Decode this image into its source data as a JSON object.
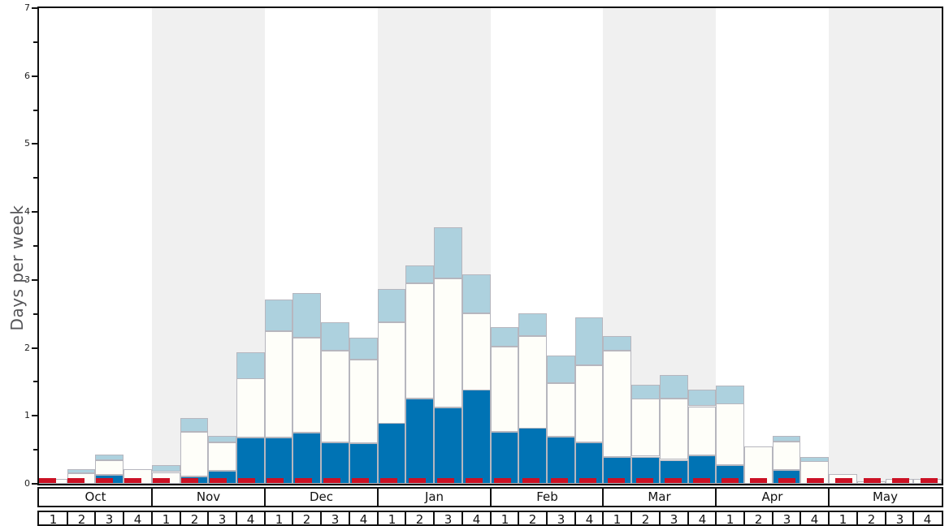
{
  "y_axis": {
    "label": "Days per week",
    "min": 0,
    "max": 7,
    "tick_labels": [
      "0",
      "1",
      "2",
      "3",
      "4",
      "5",
      "6",
      "7"
    ]
  },
  "x_axis": {
    "months": [
      {
        "name": "Oct",
        "weeks": [
          "1",
          "2",
          "3",
          "4"
        ],
        "shaded": false
      },
      {
        "name": "Nov",
        "weeks": [
          "1",
          "2",
          "3",
          "4"
        ],
        "shaded": true
      },
      {
        "name": "Dec",
        "weeks": [
          "1",
          "2",
          "3",
          "4"
        ],
        "shaded": false
      },
      {
        "name": "Jan",
        "weeks": [
          "1",
          "2",
          "3",
          "4"
        ],
        "shaded": true
      },
      {
        "name": "Feb",
        "weeks": [
          "1",
          "2",
          "3",
          "4"
        ],
        "shaded": false
      },
      {
        "name": "Mar",
        "weeks": [
          "1",
          "2",
          "3",
          "4"
        ],
        "shaded": true
      },
      {
        "name": "Apr",
        "weeks": [
          "1",
          "2",
          "3",
          "4"
        ],
        "shaded": false
      },
      {
        "name": "May",
        "weeks": [
          "1",
          "2",
          "3",
          "4"
        ],
        "shaded": true
      }
    ]
  },
  "colors": {
    "dark_blue": "#0073B4",
    "white_bar": "#FEFEF9",
    "light_blue": "#ADD1DE",
    "bar_border": "#B6B6BE",
    "shaded_band": "#F0F0F0",
    "reference_red": "#CB1124",
    "axis_black": "#111111"
  },
  "chart_data": {
    "type": "bar",
    "stacked": true,
    "title": "",
    "xlabel": "",
    "ylabel": "Days per week",
    "ylim": [
      0,
      7
    ],
    "grid": false,
    "legend": "none",
    "categories": [
      "Oct 1",
      "Oct 2",
      "Oct 3",
      "Oct 4",
      "Nov 1",
      "Nov 2",
      "Nov 3",
      "Nov 4",
      "Dec 1",
      "Dec 2",
      "Dec 3",
      "Dec 4",
      "Jan 1",
      "Jan 2",
      "Jan 3",
      "Jan 4",
      "Feb 1",
      "Feb 2",
      "Feb 3",
      "Feb 4",
      "Mar 1",
      "Mar 2",
      "Mar 3",
      "Mar 4",
      "Apr 1",
      "Apr 2",
      "Apr 3",
      "Apr 4",
      "May 1",
      "May 2",
      "May 3",
      "May 4"
    ],
    "series": [
      {
        "name": "dark_blue_days",
        "color": "#0073B4",
        "values": [
          0,
          0,
          0.13,
          0,
          0,
          0.11,
          0.19,
          0.68,
          0.68,
          0.75,
          0.61,
          0.6,
          0.89,
          1.25,
          1.12,
          1.38,
          0.76,
          0.82,
          0.69,
          0.61,
          0.4,
          0.4,
          0.35,
          0.42,
          0.27,
          0,
          0.2,
          0,
          0,
          0,
          0,
          0
        ]
      },
      {
        "name": "white_days",
        "color": "#FEFEF9",
        "values": [
          0.07,
          0.15,
          0.22,
          0.21,
          0.17,
          0.66,
          0.42,
          0.87,
          1.56,
          1.4,
          1.35,
          1.23,
          1.49,
          1.7,
          1.9,
          1.13,
          1.26,
          1.36,
          0.79,
          1.13,
          1.56,
          0.85,
          0.9,
          0.72,
          0.91,
          0.55,
          0.42,
          0.33,
          0.14,
          0.03,
          0.07,
          0.07
        ]
      },
      {
        "name": "light_blue_days",
        "color": "#ADD1DE",
        "values": [
          0,
          0.06,
          0.08,
          0,
          0.1,
          0.2,
          0.09,
          0.39,
          0.47,
          0.66,
          0.42,
          0.32,
          0.49,
          0.26,
          0.75,
          0.57,
          0.29,
          0.33,
          0.41,
          0.71,
          0.21,
          0.21,
          0.35,
          0.24,
          0.27,
          0,
          0.08,
          0.07,
          0,
          0,
          0,
          0
        ]
      }
    ],
    "totals": [
      0.07,
      0.21,
      0.43,
      0.21,
      0.27,
      0.97,
      0.7,
      1.94,
      2.71,
      2.81,
      2.38,
      2.15,
      2.87,
      3.21,
      3.77,
      3.08,
      2.31,
      2.51,
      1.89,
      2.45,
      2.17,
      1.46,
      1.6,
      1.38,
      1.45,
      0.55,
      0.7,
      0.4,
      0.14,
      0.03,
      0.07,
      0.07
    ],
    "reference_line": {
      "value": 0.05,
      "color": "#CB1124",
      "style": "dashed"
    },
    "shaded_months": [
      "Nov",
      "Jan",
      "Mar",
      "May"
    ]
  }
}
